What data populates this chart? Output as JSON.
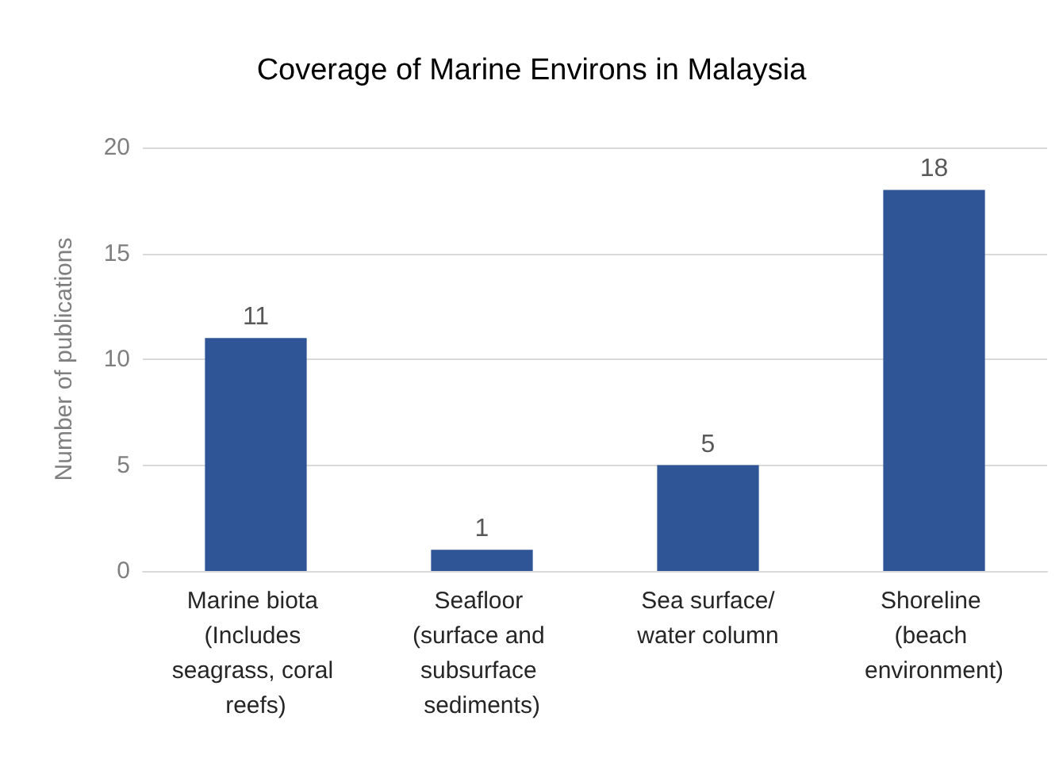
{
  "chart_data": {
    "type": "bar",
    "title": "Coverage of Marine Environs in Malaysia",
    "ylabel": "Number of publications",
    "categories": [
      "Marine biota (Includes seagrass, coral reefs)",
      "Seafloor (surface and subsurface sediments)",
      "Sea surface/water column",
      "Shoreline (beach environment)"
    ],
    "values": [
      11,
      1,
      5,
      18
    ],
    "color": "#2f5597",
    "ylim": [
      0,
      20
    ],
    "yticks": [
      0,
      5,
      10,
      15,
      20
    ],
    "grid": "y",
    "data_labels": true
  }
}
